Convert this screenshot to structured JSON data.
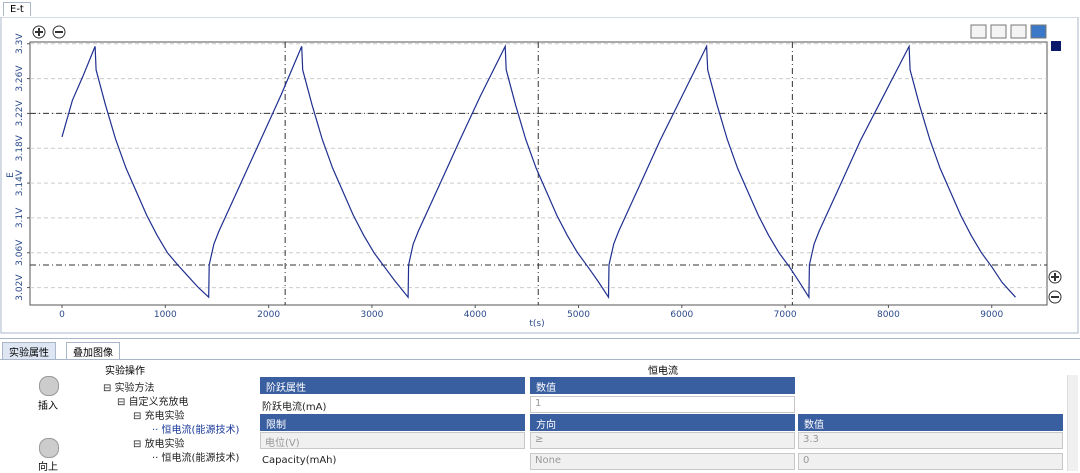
{
  "ui": {
    "tab_top": "E-t",
    "tabs_bottom": [
      "实验属性",
      "叠加图像"
    ],
    "buttons": [
      "插入",
      "向上"
    ],
    "header": [
      "实验操作",
      "恒电流"
    ],
    "tree": [
      "实验方法",
      "自定义充放电",
      "充电实验",
      "恒电流(能源技术)",
      "放电实验",
      "恒电流(能源技术)"
    ],
    "table": {
      "head1": [
        "阶跃属性",
        "数值"
      ],
      "row1": [
        "阶跃电流(mA)",
        "1"
      ],
      "head2": [
        "限制",
        "方向",
        "数值"
      ],
      "rows": [
        [
          "电位(V)",
          "≥",
          "3.3"
        ],
        [
          "Capacity(mAh)",
          "None",
          "0"
        ]
      ]
    }
  },
  "chart_data": {
    "type": "line",
    "xlabel": "t(s)",
    "ylabel": "E",
    "color": "#1f2f8f",
    "grid": true,
    "xlim": [
      -310,
      9535
    ],
    "ylim": [
      3.0,
      3.302
    ],
    "xticks": [
      0,
      1000,
      2000,
      3000,
      4000,
      5000,
      6000,
      7000,
      8000,
      9000
    ],
    "yticks": [
      {
        "value": 3.02,
        "label": "3.02V"
      },
      {
        "value": 3.06,
        "label": "3.06V"
      },
      {
        "value": 3.1,
        "label": "3.1V"
      },
      {
        "value": 3.14,
        "label": "3.14V"
      },
      {
        "value": 3.18,
        "label": "3.18V"
      },
      {
        "value": 3.22,
        "label": "3.22V"
      },
      {
        "value": 3.26,
        "label": "3.26V"
      },
      {
        "value": 3.3,
        "label": "3.3V"
      }
    ],
    "hlines": [
      3.22,
      3.046
    ],
    "vlines": [
      2160,
      4610,
      7070
    ],
    "x": [
      0,
      100,
      200,
      320,
      330,
      420,
      520,
      620,
      720,
      820,
      920,
      1020,
      1120,
      1220,
      1320,
      1420,
      1425,
      1470,
      1520,
      1720,
      1920,
      2120,
      2320,
      2330,
      2420,
      2520,
      2620,
      2720,
      2820,
      2920,
      3020,
      3120,
      3220,
      3350,
      3355,
      3400,
      3450,
      3650,
      3850,
      4050,
      4290,
      4300,
      4390,
      4490,
      4590,
      4690,
      4790,
      4890,
      4990,
      5090,
      5190,
      5290,
      5295,
      5340,
      5390,
      5590,
      5790,
      5990,
      6240,
      6250,
      6340,
      6440,
      6540,
      6640,
      6740,
      6840,
      6940,
      7040,
      7140,
      7230,
      7235,
      7280,
      7330,
      7530,
      7730,
      7930,
      8200,
      8210,
      8300,
      8400,
      8500,
      8600,
      8700,
      8800,
      8900,
      9000,
      9100,
      9230
    ],
    "values": [
      3.193,
      3.235,
      3.262,
      3.297,
      3.27,
      3.23,
      3.19,
      3.157,
      3.13,
      3.103,
      3.08,
      3.06,
      3.046,
      3.033,
      3.02,
      3.009,
      3.046,
      3.07,
      3.085,
      3.137,
      3.189,
      3.241,
      3.297,
      3.27,
      3.23,
      3.19,
      3.157,
      3.13,
      3.103,
      3.08,
      3.06,
      3.044,
      3.028,
      3.009,
      3.046,
      3.07,
      3.085,
      3.137,
      3.189,
      3.24,
      3.297,
      3.27,
      3.23,
      3.19,
      3.157,
      3.13,
      3.103,
      3.08,
      3.06,
      3.044,
      3.027,
      3.009,
      3.046,
      3.07,
      3.085,
      3.137,
      3.189,
      3.237,
      3.297,
      3.27,
      3.23,
      3.19,
      3.157,
      3.13,
      3.103,
      3.08,
      3.06,
      3.044,
      3.026,
      3.009,
      3.046,
      3.07,
      3.085,
      3.137,
      3.189,
      3.235,
      3.297,
      3.27,
      3.23,
      3.19,
      3.157,
      3.13,
      3.103,
      3.08,
      3.06,
      3.044,
      3.026,
      3.009
    ]
  }
}
